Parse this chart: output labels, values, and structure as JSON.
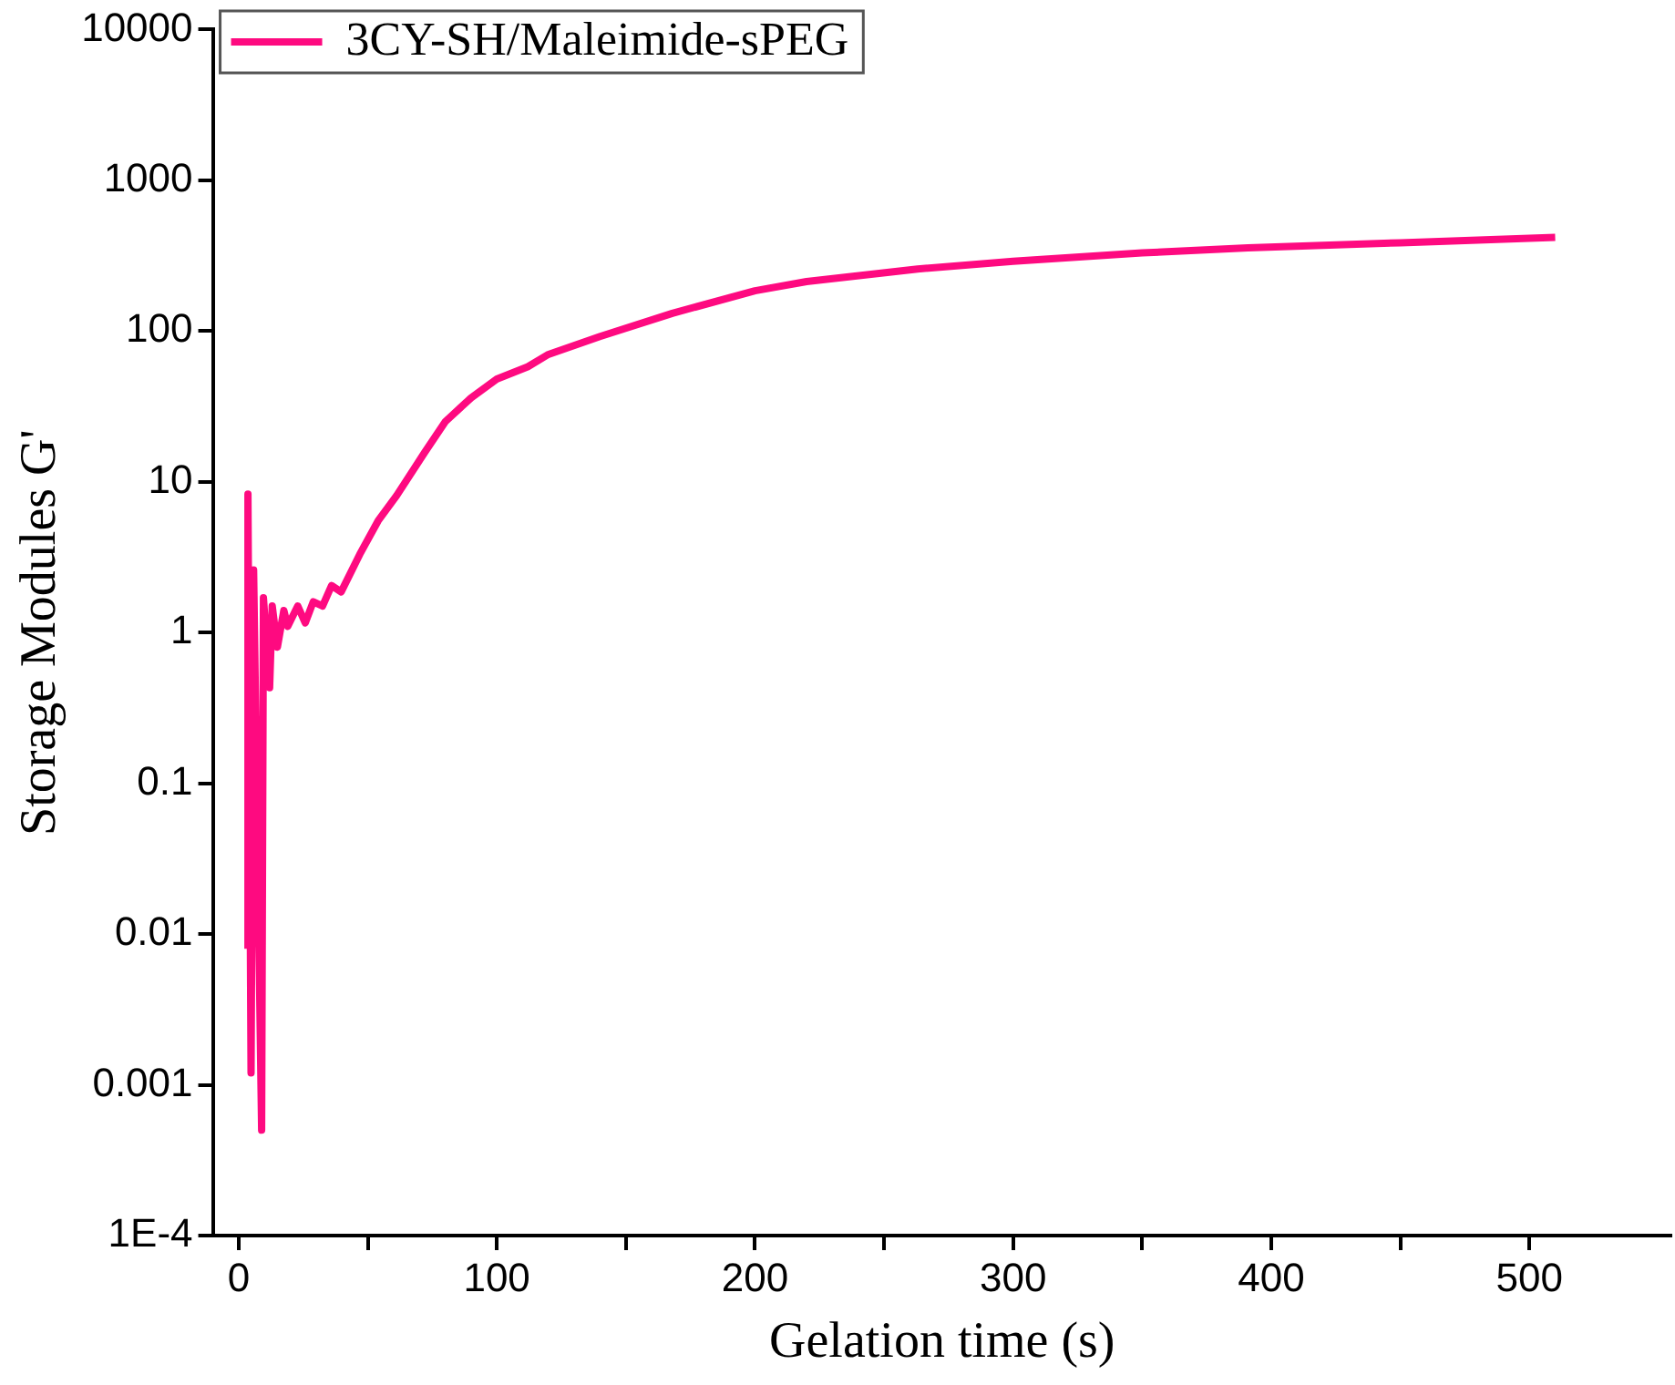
{
  "chart_data": {
    "type": "line",
    "xlabel": "Gelation time (s)",
    "ylabel": "Storage Modules G'",
    "log": "y",
    "grid": false,
    "legend": "top left",
    "marker": "none",
    "line_style": "solid",
    "xlim": [
      -10,
      555
    ],
    "xticks": [
      0,
      {
        "value": 50,
        "label": null
      },
      100,
      {
        "value": 150,
        "label": null
      },
      200,
      {
        "value": 250,
        "label": null
      },
      300,
      {
        "value": 350,
        "label": null
      },
      400,
      {
        "value": 450,
        "label": null
      },
      500
    ],
    "ylim": [
      0.0001,
      10000
    ],
    "yticks": [
      {
        "value": 0.0001,
        "label": "1E-4"
      },
      0.001,
      0.01,
      0.1,
      1,
      10,
      100,
      1000,
      10000
    ],
    "series": [
      {
        "name": "3CY-SH/Maleimide-sPEG",
        "color": "#fe0a80",
        "x": [
          3.6,
          3.6,
          4.8,
          5.8,
          8.9,
          9.6,
          12,
          13,
          15,
          17.5,
          19,
          22.9,
          25.8,
          28.9,
          32.5,
          36,
          39.7,
          46.9,
          54,
          61.2,
          72,
          80,
          90,
          100,
          112,
          120,
          140,
          168,
          200,
          220,
          263,
          300,
          350,
          391,
          450,
          510
        ],
        "values": [
          0.008,
          8.3,
          0.0012,
          2.6,
          0.0005,
          1.7,
          0.43,
          1.5,
          0.8,
          1.4,
          1.1,
          1.5,
          1.16,
          1.6,
          1.5,
          2.05,
          1.86,
          3.3,
          5.5,
          8.1,
          15.6,
          25,
          36,
          48,
          58,
          70,
          92,
          131,
          185,
          213,
          258,
          290,
          330,
          356,
          385,
          418
        ]
      }
    ]
  }
}
